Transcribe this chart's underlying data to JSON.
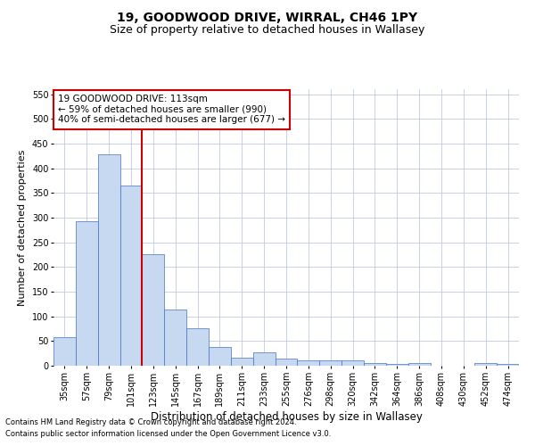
{
  "title1": "19, GOODWOOD DRIVE, WIRRAL, CH46 1PY",
  "title2": "Size of property relative to detached houses in Wallasey",
  "xlabel": "Distribution of detached houses by size in Wallasey",
  "ylabel": "Number of detached properties",
  "footnote1": "Contains HM Land Registry data © Crown copyright and database right 2024.",
  "footnote2": "Contains public sector information licensed under the Open Government Licence v3.0.",
  "bar_labels": [
    "35sqm",
    "57sqm",
    "79sqm",
    "101sqm",
    "123sqm",
    "145sqm",
    "167sqm",
    "189sqm",
    "211sqm",
    "233sqm",
    "255sqm",
    "276sqm",
    "298sqm",
    "320sqm",
    "342sqm",
    "364sqm",
    "386sqm",
    "408sqm",
    "430sqm",
    "452sqm",
    "474sqm"
  ],
  "bar_values": [
    57,
    293,
    428,
    365,
    225,
    113,
    76,
    38,
    17,
    28,
    15,
    10,
    10,
    10,
    5,
    4,
    6,
    0,
    0,
    5,
    3
  ],
  "bar_color": "#c6d9f0",
  "bar_edge_color": "#4472c4",
  "red_line_x": 3.5,
  "annotation_text": "19 GOODWOOD DRIVE: 113sqm\n← 59% of detached houses are smaller (990)\n40% of semi-detached houses are larger (677) →",
  "annotation_box_color": "#ffffff",
  "annotation_box_edge": "#cc0000",
  "ylim": [
    0,
    560
  ],
  "yticks": [
    0,
    50,
    100,
    150,
    200,
    250,
    300,
    350,
    400,
    450,
    500,
    550
  ],
  "background_color": "#ffffff",
  "grid_color": "#c0c8e0",
  "title1_fontsize": 10,
  "title2_fontsize": 9,
  "xlabel_fontsize": 8.5,
  "ylabel_fontsize": 8,
  "tick_fontsize": 7,
  "annotation_fontsize": 7.5,
  "footnote_fontsize": 6
}
